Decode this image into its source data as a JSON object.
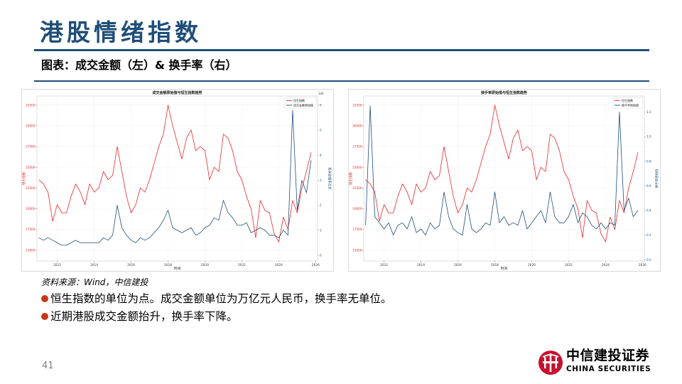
{
  "slide": {
    "title": "港股情绪指数",
    "subtitle": "图表：成交金额（左）& 换手率（右）",
    "source": "资料来源：Wind，中信建投",
    "bullets": [
      "恒生指数的单位为点。成交金额单位为万亿元人民币，换手率无单位。",
      "近期港股成交金额抬升，换手率下降。"
    ],
    "page_number": "41",
    "accent_color": "#1f4e79",
    "bullet_color": "#c8361b"
  },
  "logo": {
    "icon": "china-securities-emblem",
    "name_cn": "中信建投证券",
    "name_en": "CHINA SECURITIES",
    "color": "#c8102e"
  },
  "chart_data": [
    {
      "type": "line",
      "title": "成交金额原始值与恒生指数趋势",
      "xlabel": "时间",
      "x_ticks": [
        "2012",
        "2014",
        "2016",
        "2018",
        "2020",
        "2022",
        "2024",
        "2026"
      ],
      "xlim": [
        2010.9,
        2026.1
      ],
      "y_left": {
        "label": "恒生指数",
        "ticks": [
          "15000",
          "17500",
          "20000",
          "22500",
          "25000",
          "27500",
          "30000",
          "32500"
        ],
        "range": [
          13700,
          33600
        ]
      },
      "y_right": {
        "label": "成交金额原始值",
        "ticks": [
          "0",
          "1",
          "2",
          "3",
          "4",
          "5",
          "6"
        ],
        "range": [
          -0.23,
          6.37
        ],
        "offset_text": "1e6"
      },
      "legend": "top-right",
      "grid": true,
      "x": [
        2011.0,
        2011.25,
        2011.5,
        2011.75,
        2012.0,
        2012.25,
        2012.5,
        2012.75,
        2013.0,
        2013.25,
        2013.5,
        2013.75,
        2014.0,
        2014.25,
        2014.5,
        2014.75,
        2015.0,
        2015.25,
        2015.5,
        2015.75,
        2016.0,
        2016.25,
        2016.5,
        2016.75,
        2017.0,
        2017.25,
        2017.5,
        2017.75,
        2018.0,
        2018.25,
        2018.5,
        2018.75,
        2019.0,
        2019.25,
        2019.5,
        2019.75,
        2020.0,
        2020.25,
        2020.5,
        2020.75,
        2021.0,
        2021.25,
        2021.5,
        2021.75,
        2022.0,
        2022.25,
        2022.5,
        2022.75,
        2023.0,
        2023.25,
        2023.5,
        2023.75,
        2024.0,
        2024.25,
        2024.5,
        2024.75,
        2025.0,
        2025.25,
        2025.5,
        2025.75
      ],
      "series": [
        {
          "name": "恒生指数",
          "axis": "left",
          "color": "#e8262b",
          "values": [
            23500,
            23000,
            22000,
            18500,
            20500,
            19500,
            19500,
            21500,
            23000,
            22000,
            20500,
            23000,
            22000,
            22500,
            24500,
            23500,
            24000,
            27500,
            24500,
            21500,
            19500,
            20500,
            22500,
            22000,
            23500,
            25500,
            27500,
            29000,
            32500,
            30000,
            28000,
            26000,
            28500,
            29500,
            27000,
            27500,
            27000,
            23500,
            25000,
            24500,
            29000,
            28500,
            27000,
            24500,
            23500,
            21500,
            20000,
            16500,
            21000,
            19800,
            19500,
            17000,
            16000,
            19000,
            17500,
            21000,
            19500,
            22500,
            24500,
            26800
          ]
        },
        {
          "name": "成交金额原始值",
          "axis": "right",
          "color": "#1f4e79",
          "values": [
            0.7,
            0.6,
            0.7,
            0.6,
            0.5,
            0.4,
            0.4,
            0.5,
            0.6,
            0.5,
            0.5,
            0.5,
            0.5,
            0.5,
            0.7,
            0.6,
            0.8,
            2.0,
            1.1,
            0.8,
            0.6,
            0.5,
            0.7,
            0.6,
            0.7,
            0.9,
            1.1,
            1.4,
            1.8,
            1.1,
            1.0,
            0.9,
            1.0,
            1.1,
            0.8,
            0.9,
            1.1,
            1.2,
            1.5,
            1.4,
            2.2,
            1.7,
            1.5,
            1.2,
            1.2,
            1.3,
            0.9,
            1.0,
            1.1,
            1.0,
            0.8,
            0.8,
            0.7,
            1.0,
            0.8,
            5.8,
            1.8,
            3.0,
            2.5,
            3.8
          ]
        }
      ]
    },
    {
      "type": "line",
      "title": "换手率原始值与恒生指数趋势",
      "xlabel": "时间",
      "x_ticks": [
        "2012",
        "2014",
        "2016",
        "2018",
        "2020",
        "2022",
        "2024",
        "2026"
      ],
      "xlim": [
        2010.9,
        2026.1
      ],
      "y_left": {
        "label": "恒生指数",
        "ticks": [
          "15000",
          "17500",
          "20000",
          "22500",
          "25000",
          "27500",
          "30000",
          "32500"
        ],
        "range": [
          13700,
          33600
        ]
      },
      "y_right": {
        "label": "换手率原始值",
        "ticks": [
          "0.0",
          "0.2",
          "0.4",
          "0.6",
          "0.8",
          "1.0",
          "1.2"
        ],
        "range": [
          -0.01,
          1.33
        ]
      },
      "legend": "top-right",
      "grid": true,
      "x": [
        2011.0,
        2011.25,
        2011.5,
        2011.75,
        2012.0,
        2012.25,
        2012.5,
        2012.75,
        2013.0,
        2013.25,
        2013.5,
        2013.75,
        2014.0,
        2014.25,
        2014.5,
        2014.75,
        2015.0,
        2015.25,
        2015.5,
        2015.75,
        2016.0,
        2016.25,
        2016.5,
        2016.75,
        2017.0,
        2017.25,
        2017.5,
        2017.75,
        2018.0,
        2018.25,
        2018.5,
        2018.75,
        2019.0,
        2019.25,
        2019.5,
        2019.75,
        2020.0,
        2020.25,
        2020.5,
        2020.75,
        2021.0,
        2021.25,
        2021.5,
        2021.75,
        2022.0,
        2022.25,
        2022.5,
        2022.75,
        2023.0,
        2023.25,
        2023.5,
        2023.75,
        2024.0,
        2024.25,
        2024.5,
        2024.75,
        2025.0,
        2025.25,
        2025.5,
        2025.75
      ],
      "series": [
        {
          "name": "恒生指数",
          "axis": "left",
          "color": "#e8262b",
          "values": [
            23500,
            23000,
            22000,
            18500,
            20500,
            19500,
            19500,
            21500,
            23000,
            22000,
            20500,
            23000,
            22000,
            22500,
            24500,
            23500,
            24000,
            27500,
            24500,
            21500,
            19500,
            20500,
            22500,
            22000,
            23500,
            25500,
            27500,
            29000,
            32500,
            30000,
            28000,
            26000,
            28500,
            29500,
            27000,
            27500,
            27000,
            23500,
            25000,
            24500,
            29000,
            28500,
            27000,
            24500,
            23500,
            21500,
            20000,
            16500,
            21000,
            19800,
            19500,
            17000,
            16000,
            19000,
            17500,
            21000,
            19500,
            22500,
            24500,
            26800
          ]
        },
        {
          "name": "换手率原始值",
          "axis": "right",
          "color": "#1f4e79",
          "values": [
            0.28,
            1.25,
            0.35,
            0.3,
            0.25,
            0.3,
            0.2,
            0.28,
            0.3,
            0.25,
            0.35,
            0.22,
            0.25,
            0.2,
            0.3,
            0.25,
            0.28,
            0.55,
            0.35,
            0.25,
            0.22,
            0.2,
            0.45,
            0.25,
            0.22,
            0.25,
            0.3,
            0.28,
            0.55,
            0.3,
            0.35,
            0.28,
            0.3,
            0.28,
            0.4,
            0.25,
            0.3,
            0.35,
            0.4,
            0.3,
            0.55,
            0.35,
            0.3,
            0.3,
            0.35,
            0.45,
            0.3,
            0.38,
            0.35,
            0.28,
            0.25,
            0.3,
            0.25,
            0.3,
            0.28,
            1.2,
            0.4,
            0.5,
            0.35,
            0.4
          ]
        }
      ]
    }
  ]
}
